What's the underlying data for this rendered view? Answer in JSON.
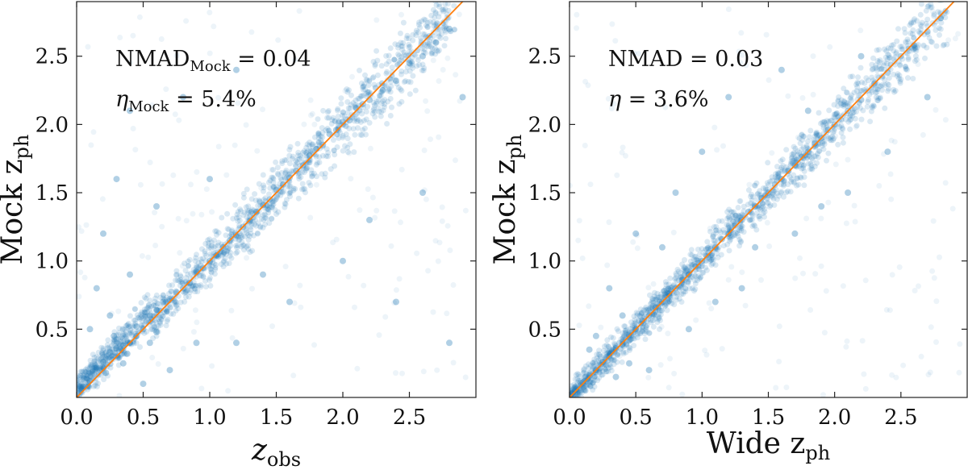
{
  "chart_data": [
    {
      "type": "scatter",
      "xlabel": {
        "main": "z",
        "sub": "obs"
      },
      "ylabel": {
        "main": "Mock z",
        "sub": "ph"
      },
      "xlim": [
        0,
        3.0
      ],
      "ylim": [
        0,
        2.9
      ],
      "xticks": [
        "0.0",
        "0.5",
        "1.0",
        "1.5",
        "2.0",
        "2.5"
      ],
      "yticks": [
        "0.5",
        "1.0",
        "1.5",
        "2.0",
        "2.5"
      ],
      "annotations": [
        {
          "main": "NMAD",
          "sub": "Mock",
          "rest": " = 0.04"
        },
        {
          "main": "η",
          "sub": "Mock",
          "rest": " = 5.4%"
        }
      ],
      "reference_line": {
        "from": [
          0,
          0
        ],
        "to": [
          3.0,
          3.0
        ],
        "color": "#ff7f0e"
      },
      "point_color": "#1f77b4",
      "grid": false,
      "points": [
        [
          0.05,
          0.08
        ],
        [
          0.1,
          0.12
        ],
        [
          0.15,
          0.22
        ],
        [
          0.2,
          0.26
        ],
        [
          0.25,
          0.33
        ],
        [
          0.3,
          0.36
        ],
        [
          0.35,
          0.38
        ],
        [
          0.4,
          0.4
        ],
        [
          0.45,
          0.45
        ],
        [
          0.5,
          0.5
        ],
        [
          0.55,
          0.6
        ],
        [
          0.6,
          0.64
        ],
        [
          0.65,
          0.7
        ],
        [
          0.7,
          0.72
        ],
        [
          0.75,
          0.77
        ],
        [
          0.8,
          0.8
        ],
        [
          0.85,
          0.84
        ],
        [
          0.9,
          0.92
        ],
        [
          0.95,
          0.95
        ],
        [
          1.0,
          1.0
        ],
        [
          1.05,
          1.04
        ],
        [
          1.1,
          1.1
        ],
        [
          1.15,
          1.15
        ],
        [
          1.2,
          1.19
        ],
        [
          1.25,
          1.25
        ],
        [
          1.3,
          1.29
        ],
        [
          1.35,
          1.36
        ],
        [
          1.4,
          1.41
        ],
        [
          1.45,
          1.45
        ],
        [
          1.5,
          1.52
        ],
        [
          1.55,
          1.56
        ],
        [
          1.6,
          1.61
        ],
        [
          1.65,
          1.66
        ],
        [
          1.7,
          1.7
        ],
        [
          1.75,
          1.77
        ],
        [
          1.8,
          1.82
        ],
        [
          1.85,
          1.85
        ],
        [
          1.9,
          1.93
        ],
        [
          1.95,
          1.96
        ],
        [
          2.0,
          2.02
        ],
        [
          2.05,
          2.03
        ],
        [
          2.1,
          2.12
        ],
        [
          2.15,
          2.15
        ],
        [
          2.2,
          2.18
        ],
        [
          2.3,
          2.25
        ],
        [
          2.4,
          2.32
        ],
        [
          2.5,
          2.45
        ],
        [
          2.6,
          2.5
        ],
        [
          2.7,
          2.6
        ],
        [
          2.8,
          2.7
        ],
        [
          0.1,
          0.5
        ],
        [
          0.15,
          0.8
        ],
        [
          0.2,
          1.2
        ],
        [
          0.3,
          1.6
        ],
        [
          0.4,
          2.1
        ],
        [
          0.6,
          1.4
        ],
        [
          0.8,
          2.2
        ],
        [
          1.0,
          1.6
        ],
        [
          1.2,
          2.4
        ],
        [
          0.5,
          0.1
        ],
        [
          0.7,
          0.2
        ],
        [
          1.2,
          0.4
        ],
        [
          1.6,
          0.7
        ],
        [
          2.0,
          1.0
        ],
        [
          2.4,
          0.7
        ],
        [
          2.6,
          1.5
        ],
        [
          2.8,
          0.4
        ],
        [
          2.9,
          2.2
        ],
        [
          2.2,
          1.3
        ],
        [
          0.9,
          0.4
        ],
        [
          1.4,
          0.9
        ],
        [
          0.4,
          0.9
        ],
        [
          0.25,
          0.6
        ],
        [
          0.35,
          0.25
        ],
        [
          0.55,
          0.4
        ],
        [
          0.6,
          0.48
        ],
        [
          0.45,
          0.52
        ],
        [
          0.38,
          0.32
        ],
        [
          0.28,
          0.45
        ],
        [
          0.22,
          0.18
        ]
      ]
    },
    {
      "type": "scatter",
      "xlabel": {
        "main": "Wide z",
        "sub": "ph"
      },
      "ylabel": {
        "main": "Mock z",
        "sub": "ph"
      },
      "xlim": [
        0,
        3.0
      ],
      "ylim": [
        0,
        2.9
      ],
      "xticks": [
        "0.0",
        "0.5",
        "1.0",
        "1.5",
        "2.0",
        "2.5"
      ],
      "yticks": [
        "0.5",
        "1.0",
        "1.5",
        "2.0",
        "2.5"
      ],
      "annotations": [
        {
          "main": "NMAD",
          "sub": "",
          "rest": " = 0.03"
        },
        {
          "main": "η",
          "sub": "",
          "rest": " = 3.6%"
        }
      ],
      "reference_line": {
        "from": [
          0,
          0
        ],
        "to": [
          3.0,
          3.0
        ],
        "color": "#ff7f0e"
      },
      "point_color": "#1f77b4",
      "grid": false,
      "points": [
        [
          0.05,
          0.06
        ],
        [
          0.1,
          0.11
        ],
        [
          0.15,
          0.16
        ],
        [
          0.2,
          0.2
        ],
        [
          0.25,
          0.26
        ],
        [
          0.3,
          0.3
        ],
        [
          0.35,
          0.36
        ],
        [
          0.4,
          0.39
        ],
        [
          0.45,
          0.46
        ],
        [
          0.5,
          0.5
        ],
        [
          0.55,
          0.56
        ],
        [
          0.6,
          0.6
        ],
        [
          0.65,
          0.66
        ],
        [
          0.7,
          0.7
        ],
        [
          0.75,
          0.76
        ],
        [
          0.8,
          0.8
        ],
        [
          0.85,
          0.86
        ],
        [
          0.9,
          0.9
        ],
        [
          0.95,
          0.96
        ],
        [
          1.0,
          1.0
        ],
        [
          1.05,
          1.06
        ],
        [
          1.1,
          1.1
        ],
        [
          1.15,
          1.16
        ],
        [
          1.2,
          1.2
        ],
        [
          1.25,
          1.26
        ],
        [
          1.3,
          1.3
        ],
        [
          1.35,
          1.36
        ],
        [
          1.4,
          1.4
        ],
        [
          1.45,
          1.46
        ],
        [
          1.5,
          1.5
        ],
        [
          1.55,
          1.56
        ],
        [
          1.6,
          1.6
        ],
        [
          1.65,
          1.66
        ],
        [
          1.7,
          1.7
        ],
        [
          1.75,
          1.76
        ],
        [
          1.8,
          1.8
        ],
        [
          1.85,
          1.86
        ],
        [
          1.9,
          1.9
        ],
        [
          1.95,
          1.96
        ],
        [
          2.0,
          2.0
        ],
        [
          2.1,
          2.1
        ],
        [
          2.2,
          2.18
        ],
        [
          2.3,
          2.3
        ],
        [
          2.4,
          2.38
        ],
        [
          2.5,
          2.5
        ],
        [
          2.6,
          2.58
        ],
        [
          2.7,
          2.68
        ],
        [
          2.8,
          2.78
        ],
        [
          0.3,
          0.8
        ],
        [
          0.5,
          1.2
        ],
        [
          0.8,
          1.5
        ],
        [
          1.0,
          1.8
        ],
        [
          1.2,
          2.2
        ],
        [
          0.6,
          0.2
        ],
        [
          0.9,
          0.5
        ],
        [
          1.3,
          0.8
        ],
        [
          1.7,
          1.2
        ],
        [
          2.1,
          1.5
        ],
        [
          2.4,
          1.8
        ],
        [
          2.7,
          2.2
        ],
        [
          0.2,
          0.45
        ],
        [
          0.45,
          0.25
        ],
        [
          1.6,
          2.4
        ],
        [
          0.7,
          1.1
        ],
        [
          1.1,
          0.7
        ],
        [
          1.9,
          1.4
        ],
        [
          0.4,
          0.6
        ],
        [
          1.4,
          1.1
        ],
        [
          2.2,
          2.5
        ],
        [
          0.15,
          0.35
        ],
        [
          0.35,
          0.15
        ],
        [
          1.8,
          2.1
        ]
      ]
    }
  ]
}
